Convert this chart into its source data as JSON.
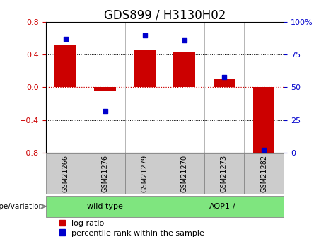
{
  "title": "GDS899 / H3130H02",
  "samples": [
    "GSM21266",
    "GSM21276",
    "GSM21279",
    "GSM21270",
    "GSM21273",
    "GSM21282"
  ],
  "log_ratios": [
    0.52,
    -0.04,
    0.46,
    0.44,
    0.1,
    -0.82
  ],
  "percentile_ranks": [
    87,
    32,
    90,
    86,
    58,
    2
  ],
  "ylim_left": [
    -0.8,
    0.8
  ],
  "ylim_right": [
    0,
    100
  ],
  "yticks_left": [
    -0.8,
    -0.4,
    0,
    0.4,
    0.8
  ],
  "yticks_right": [
    0,
    25,
    50,
    75,
    100
  ],
  "group_wt_label": "wild type",
  "group_aqp_label": "AQP1-/-",
  "group_label_text": "genotype/variation",
  "group_wt_count": 3,
  "group_aqp_count": 3,
  "bar_color": "#CC0000",
  "point_color": "#0000CC",
  "zero_line_color": "#CC0000",
  "grid_color": "#000000",
  "sample_box_color": "#CCCCCC",
  "group_box_color": "#7FE57F",
  "title_fontsize": 12,
  "tick_fontsize": 8,
  "legend_fontsize": 8,
  "bar_width": 0.55
}
